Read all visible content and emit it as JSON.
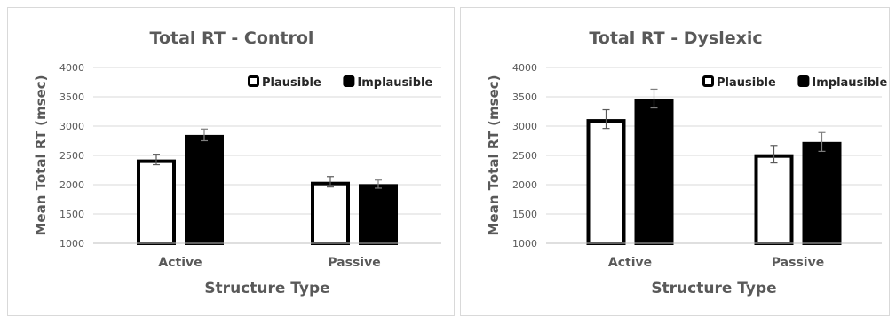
{
  "chart_data": [
    {
      "type": "bar",
      "title": "Total RT - Control",
      "xlabel": "Structure Type",
      "ylabel": "Mean Total RT (msec)",
      "ylim": [
        1000,
        4000
      ],
      "yticks": [
        "1000",
        "1500",
        "2000",
        "2500",
        "3000",
        "3500",
        "4000"
      ],
      "categories": [
        "Active",
        "Passive"
      ],
      "legend_position": "top-right",
      "series": [
        {
          "name": "Plausible",
          "values": [
            2430,
            2050
          ],
          "errors": [
            90,
            90
          ],
          "fill": "#ffffff",
          "stroke": "#000000"
        },
        {
          "name": "Implausible",
          "values": [
            2850,
            2010
          ],
          "errors": [
            100,
            70
          ],
          "fill": "#000000",
          "stroke": "#000000"
        }
      ]
    },
    {
      "type": "bar",
      "title": "Total RT - Dyslexic",
      "xlabel": "Structure Type",
      "ylabel": "Mean Total RT (msec)",
      "ylim": [
        1000,
        4000
      ],
      "yticks": [
        "1000",
        "1500",
        "2000",
        "2500",
        "3000",
        "3500",
        "4000"
      ],
      "categories": [
        "Active",
        "Passive"
      ],
      "legend_position": "top-right",
      "series": [
        {
          "name": "Plausible",
          "values": [
            3120,
            2520
          ],
          "errors": [
            160,
            150
          ],
          "fill": "#ffffff",
          "stroke": "#000000"
        },
        {
          "name": "Implausible",
          "values": [
            3470,
            2730
          ],
          "errors": [
            160,
            160
          ],
          "fill": "#000000",
          "stroke": "#000000"
        }
      ]
    }
  ]
}
